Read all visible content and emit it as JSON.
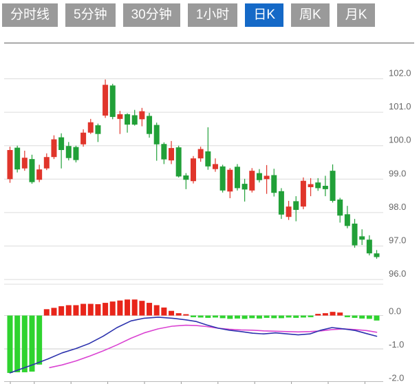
{
  "tabs": {
    "items": [
      {
        "name": "tab-time-line",
        "label": "分时线",
        "active": false
      },
      {
        "name": "tab-5min",
        "label": "5分钟",
        "active": false
      },
      {
        "name": "tab-30min",
        "label": "30分钟",
        "active": false
      },
      {
        "name": "tab-1hour",
        "label": "1小时",
        "active": false
      },
      {
        "name": "tab-daily-k",
        "label": "日K",
        "active": true
      },
      {
        "name": "tab-weekly-k",
        "label": "周K",
        "active": false
      },
      {
        "name": "tab-monthly-k",
        "label": "月K",
        "active": false
      }
    ],
    "active_bg": "#1569c7",
    "inactive_bg": "#9a9a9a",
    "text_color": "#ffffff"
  },
  "chart_data": {
    "type": "candlestick",
    "title": "",
    "price_axis": {
      "labels": [
        "102.0",
        "101.0",
        "100.0",
        "99.0",
        "98.0",
        "97.0",
        "96.0"
      ],
      "values": [
        102,
        101,
        100,
        99,
        98,
        97,
        96
      ],
      "label_color": "#666666",
      "grid_color": "#dcdcdc"
    },
    "up_color": "#e0352b",
    "down_color": "#21a038",
    "candles": [
      {
        "o": 99.0,
        "h": 99.97,
        "l": 98.89,
        "c": 99.87
      },
      {
        "o": 99.94,
        "h": 100.0,
        "l": 99.2,
        "c": 99.29
      },
      {
        "o": 99.32,
        "h": 99.85,
        "l": 99.25,
        "c": 99.64
      },
      {
        "o": 99.6,
        "h": 99.73,
        "l": 98.86,
        "c": 98.91
      },
      {
        "o": 98.98,
        "h": 99.43,
        "l": 98.91,
        "c": 99.29
      },
      {
        "o": 99.32,
        "h": 99.77,
        "l": 99.27,
        "c": 99.66
      },
      {
        "o": 99.66,
        "h": 100.31,
        "l": 99.6,
        "c": 100.19
      },
      {
        "o": 100.25,
        "h": 100.37,
        "l": 99.32,
        "c": 99.87
      },
      {
        "o": 99.99,
        "h": 100.11,
        "l": 99.56,
        "c": 99.63
      },
      {
        "o": 99.96,
        "h": 100.0,
        "l": 99.5,
        "c": 99.57
      },
      {
        "o": 100.04,
        "h": 100.49,
        "l": 99.97,
        "c": 100.39
      },
      {
        "o": 100.39,
        "h": 100.8,
        "l": 100.35,
        "c": 100.7
      },
      {
        "o": 100.61,
        "h": 100.66,
        "l": 100.11,
        "c": 100.35
      },
      {
        "o": 100.9,
        "h": 101.98,
        "l": 100.83,
        "c": 101.82
      },
      {
        "o": 101.8,
        "h": 101.85,
        "l": 100.79,
        "c": 100.86
      },
      {
        "o": 100.8,
        "h": 101.04,
        "l": 100.35,
        "c": 100.94
      },
      {
        "o": 100.94,
        "h": 100.97,
        "l": 100.39,
        "c": 100.63
      },
      {
        "o": 100.91,
        "h": 101.07,
        "l": 100.6,
        "c": 100.63
      },
      {
        "o": 100.79,
        "h": 101.13,
        "l": 100.58,
        "c": 101.03
      },
      {
        "o": 100.89,
        "h": 100.98,
        "l": 100.24,
        "c": 100.35
      },
      {
        "o": 100.62,
        "h": 100.69,
        "l": 99.55,
        "c": 100.04
      },
      {
        "o": 100.05,
        "h": 100.1,
        "l": 99.45,
        "c": 99.59
      },
      {
        "o": 99.56,
        "h": 100.14,
        "l": 99.45,
        "c": 99.93
      },
      {
        "o": 99.95,
        "h": 100.0,
        "l": 99.05,
        "c": 99.08
      },
      {
        "o": 99.11,
        "h": 99.18,
        "l": 98.7,
        "c": 98.98
      },
      {
        "o": 98.94,
        "h": 99.69,
        "l": 98.87,
        "c": 99.62
      },
      {
        "o": 99.62,
        "h": 99.97,
        "l": 99.52,
        "c": 99.9
      },
      {
        "o": 99.83,
        "h": 100.55,
        "l": 99.28,
        "c": 99.38
      },
      {
        "o": 99.3,
        "h": 99.62,
        "l": 99.22,
        "c": 99.45
      },
      {
        "o": 99.38,
        "h": 99.43,
        "l": 98.6,
        "c": 98.66
      },
      {
        "o": 98.63,
        "h": 99.33,
        "l": 98.43,
        "c": 99.28
      },
      {
        "o": 99.37,
        "h": 99.45,
        "l": 98.66,
        "c": 98.73
      },
      {
        "o": 98.86,
        "h": 99.01,
        "l": 98.33,
        "c": 98.69
      },
      {
        "o": 98.66,
        "h": 99.33,
        "l": 98.6,
        "c": 99.25
      },
      {
        "o": 99.18,
        "h": 99.3,
        "l": 98.9,
        "c": 98.97
      },
      {
        "o": 99.0,
        "h": 99.42,
        "l": 98.56,
        "c": 99.1
      },
      {
        "o": 99.12,
        "h": 99.31,
        "l": 98.48,
        "c": 98.59
      },
      {
        "o": 98.64,
        "h": 98.73,
        "l": 97.81,
        "c": 97.94
      },
      {
        "o": 97.87,
        "h": 98.35,
        "l": 97.78,
        "c": 98.18
      },
      {
        "o": 98.34,
        "h": 98.49,
        "l": 97.74,
        "c": 98.08
      },
      {
        "o": 98.18,
        "h": 99.05,
        "l": 98.1,
        "c": 98.95
      },
      {
        "o": 98.76,
        "h": 99.03,
        "l": 98.49,
        "c": 98.85
      },
      {
        "o": 98.9,
        "h": 99.03,
        "l": 98.65,
        "c": 98.73
      },
      {
        "o": 98.8,
        "h": 99.1,
        "l": 98.49,
        "c": 98.7
      },
      {
        "o": 99.25,
        "h": 99.44,
        "l": 98.3,
        "c": 98.35
      },
      {
        "o": 98.39,
        "h": 98.44,
        "l": 97.7,
        "c": 97.91
      },
      {
        "o": 97.95,
        "h": 98.2,
        "l": 97.53,
        "c": 97.6
      },
      {
        "o": 97.67,
        "h": 97.81,
        "l": 96.95,
        "c": 97.02
      },
      {
        "o": 97.29,
        "h": 97.5,
        "l": 97.03,
        "c": 97.19
      },
      {
        "o": 97.19,
        "h": 97.32,
        "l": 96.72,
        "c": 96.78
      },
      {
        "o": 96.78,
        "h": 96.88,
        "l": 96.62,
        "c": 96.67
      }
    ],
    "macd": {
      "axis_labels": [
        "0.0",
        "-1.0",
        "-2.0"
      ],
      "axis_values": [
        0,
        -1,
        -2
      ],
      "hist_up_color": "#e8251a",
      "hist_down_color": "#2fd32f",
      "dif_color": "#2b31ad",
      "dea_color": "#da43d2",
      "histogram": [
        -1.72,
        -1.7,
        -1.7,
        -1.68,
        -1.47,
        0.19,
        0.23,
        0.28,
        0.31,
        0.31,
        0.35,
        0.35,
        0.34,
        0.38,
        0.42,
        0.45,
        0.48,
        0.48,
        0.44,
        0.38,
        0.31,
        0.24,
        0.14,
        0.07,
        0.04,
        -0.05,
        -0.06,
        -0.07,
        -0.06,
        -0.08,
        -0.1,
        -0.09,
        -0.1,
        -0.08,
        -0.09,
        -0.07,
        -0.08,
        -0.08,
        -0.06,
        -0.07,
        -0.06,
        -0.05,
        0.05,
        0.07,
        0.11,
        0.09,
        -0.05,
        -0.07,
        -0.09,
        -0.1,
        -0.15
      ],
      "dif": [
        [
          0,
          -1.72
        ],
        [
          1.5,
          -1.6
        ],
        [
          3.3,
          -1.46
        ],
        [
          5.2,
          -1.3
        ],
        [
          7.1,
          -1.12
        ],
        [
          9,
          -0.99
        ],
        [
          10.8,
          -0.84
        ],
        [
          12.7,
          -0.62
        ],
        [
          14.6,
          -0.36
        ],
        [
          16.5,
          -0.16
        ],
        [
          18.3,
          -0.08
        ],
        [
          20.2,
          -0.05
        ],
        [
          22.1,
          -0.08
        ],
        [
          24,
          -0.13
        ],
        [
          25.4,
          -0.18
        ],
        [
          26.8,
          -0.28
        ],
        [
          28.4,
          -0.38
        ],
        [
          29.9,
          -0.44
        ],
        [
          31.5,
          -0.48
        ],
        [
          33.1,
          -0.53
        ],
        [
          34.6,
          -0.55
        ],
        [
          36.2,
          -0.52
        ],
        [
          37.8,
          -0.55
        ],
        [
          39.3,
          -0.58
        ],
        [
          40.9,
          -0.55
        ],
        [
          42.4,
          -0.44
        ],
        [
          43.9,
          -0.36
        ],
        [
          45.5,
          -0.4
        ],
        [
          47.1,
          -0.45
        ],
        [
          48.6,
          -0.54
        ],
        [
          50,
          -0.62
        ]
      ],
      "dea": [
        [
          5.4,
          -1.56
        ],
        [
          7.1,
          -1.48
        ],
        [
          9,
          -1.36
        ],
        [
          10.8,
          -1.22
        ],
        [
          12.7,
          -1.06
        ],
        [
          14.6,
          -0.88
        ],
        [
          16.5,
          -0.68
        ],
        [
          18.3,
          -0.52
        ],
        [
          20.2,
          -0.4
        ],
        [
          22.1,
          -0.32
        ],
        [
          24,
          -0.29
        ],
        [
          25.4,
          -0.3
        ],
        [
          26.8,
          -0.33
        ],
        [
          28.4,
          -0.38
        ],
        [
          29.9,
          -0.41
        ],
        [
          31.5,
          -0.43
        ],
        [
          33.1,
          -0.44
        ],
        [
          34.6,
          -0.46
        ],
        [
          36.2,
          -0.47
        ],
        [
          37.8,
          -0.48
        ],
        [
          39.3,
          -0.49
        ],
        [
          40.9,
          -0.48
        ],
        [
          42.4,
          -0.46
        ],
        [
          43.9,
          -0.42
        ],
        [
          45.5,
          -0.4
        ],
        [
          47.1,
          -0.42
        ],
        [
          48.6,
          -0.45
        ],
        [
          50,
          -0.5
        ]
      ]
    }
  }
}
